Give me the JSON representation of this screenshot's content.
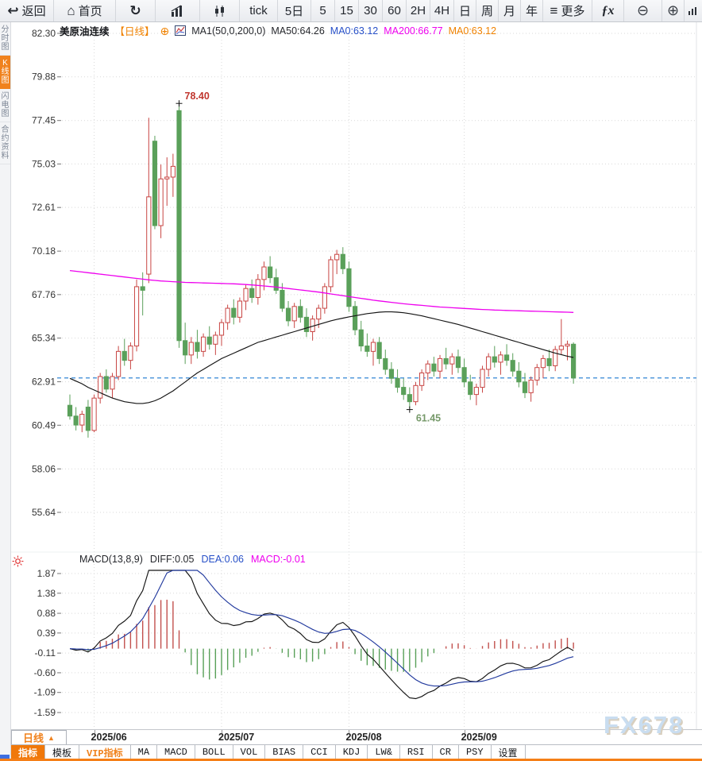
{
  "icons": {
    "back": "↩",
    "home": "⌂",
    "refresh": "↻",
    "more_glyph": "≡",
    "fx": "ƒx",
    "zoom_out": "⊖",
    "zoom_in": "⊕",
    "add": "⊕",
    "period_arrow": "▲"
  },
  "toolbar": {
    "back": "返回",
    "home": "首页",
    "tick_label": "tick",
    "d5": "5日",
    "p5": "5",
    "p15": "15",
    "p30": "30",
    "p60": "60",
    "p2h": "2H",
    "p4h": "4H",
    "pday": "日",
    "pweek": "周",
    "pmonth": "月",
    "pyear": "年",
    "more": "更多"
  },
  "sidebar": {
    "items": [
      {
        "label": "分时图",
        "active": false
      },
      {
        "label": "K线图",
        "active": true
      },
      {
        "label": "闪电图",
        "active": false
      },
      {
        "label": "合约资料",
        "active": false
      }
    ]
  },
  "header": {
    "symbol": "美原油连续",
    "period": "【日线】",
    "ma_group": "MA1(50,0,200,0)",
    "ma50": "MA50:64.26",
    "ma0_blue": "MA0:63.12",
    "ma200": "MA200:66.77",
    "ma0_orange": "MA0:63.12"
  },
  "macd_header": {
    "title": "MACD(13,8,9)",
    "diff": "DIFF:0.05",
    "dea": "DEA:0.06",
    "macd": "MACD:-0.01"
  },
  "bottom": {
    "period": "日线",
    "tabs": [
      "指标",
      "模板",
      "VIP指标",
      "MA",
      "MACD",
      "BOLL",
      "VOL",
      "BIAS",
      "CCI",
      "KDJ",
      "LW&",
      "RSI",
      "CR",
      "PSY",
      "设置"
    ]
  },
  "watermark": "FX678",
  "chart_data": {
    "type": "candlestick+macd",
    "title": "美原油连续 日线 (WTI crude continuous, daily)",
    "y_ticks": [
      "82.30",
      "79.88",
      "77.45",
      "75.03",
      "72.61",
      "70.18",
      "67.76",
      "65.34",
      "62.91",
      "60.49",
      "58.06",
      "55.64"
    ],
    "macd_y_ticks": [
      "1.87",
      "1.38",
      "0.88",
      "0.39",
      "-0.11",
      "-0.60",
      "-1.09",
      "-1.59"
    ],
    "x_labels": [
      "2025/06",
      "2025/07",
      "2025/08",
      "2025/09"
    ],
    "x_label_indices": [
      4,
      25,
      46,
      65
    ],
    "last_price": 63.12,
    "annotations": {
      "high": {
        "index": 18,
        "price": 78.4,
        "label": "78.40"
      },
      "low": {
        "index": 56,
        "price": 61.45,
        "label": "61.45"
      }
    },
    "candles": [
      [
        61.6,
        62.2,
        60.8,
        61.0
      ],
      [
        61.0,
        61.5,
        60.2,
        60.5
      ],
      [
        60.5,
        61.3,
        60.1,
        61.1
      ],
      [
        61.5,
        61.9,
        59.8,
        60.2
      ],
      [
        60.2,
        62.2,
        60.1,
        62.0
      ],
      [
        62.0,
        63.4,
        61.7,
        63.2
      ],
      [
        63.2,
        63.6,
        62.3,
        62.5
      ],
      [
        62.5,
        63.4,
        62.0,
        63.2
      ],
      [
        63.2,
        64.9,
        63.0,
        64.6
      ],
      [
        64.6,
        65.3,
        63.8,
        64.1
      ],
      [
        64.1,
        65.1,
        63.6,
        64.9
      ],
      [
        64.9,
        68.6,
        64.6,
        68.2
      ],
      [
        68.2,
        69.0,
        66.6,
        68.0
      ],
      [
        68.9,
        77.6,
        68.4,
        73.2
      ],
      [
        76.3,
        76.6,
        71.4,
        71.6
      ],
      [
        71.6,
        75.0,
        70.9,
        74.2
      ],
      [
        74.2,
        75.4,
        72.7,
        74.3
      ],
      [
        74.3,
        75.6,
        73.2,
        74.9
      ],
      [
        78.0,
        78.4,
        64.8,
        65.2
      ],
      [
        65.2,
        66.2,
        63.9,
        64.4
      ],
      [
        64.4,
        65.4,
        63.9,
        65.1
      ],
      [
        65.1,
        65.8,
        64.2,
        64.6
      ],
      [
        64.6,
        65.6,
        64.3,
        65.4
      ],
      [
        65.4,
        66.0,
        64.7,
        65.0
      ],
      [
        65.0,
        65.7,
        64.4,
        65.5
      ],
      [
        65.5,
        66.4,
        64.9,
        66.2
      ],
      [
        66.2,
        67.2,
        65.8,
        67.0
      ],
      [
        67.0,
        67.5,
        66.1,
        66.5
      ],
      [
        66.5,
        67.6,
        66.2,
        67.4
      ],
      [
        67.4,
        68.3,
        66.9,
        68.1
      ],
      [
        68.1,
        68.6,
        67.3,
        67.6
      ],
      [
        67.6,
        68.9,
        67.2,
        68.6
      ],
      [
        68.6,
        69.6,
        68.0,
        69.3
      ],
      [
        69.3,
        69.9,
        68.4,
        68.7
      ],
      [
        68.7,
        69.2,
        67.8,
        68.0
      ],
      [
        68.0,
        68.4,
        66.8,
        67.0
      ],
      [
        67.0,
        67.4,
        66.0,
        66.3
      ],
      [
        66.3,
        67.3,
        65.9,
        67.1
      ],
      [
        67.1,
        67.5,
        66.2,
        66.5
      ],
      [
        66.5,
        67.0,
        65.4,
        65.7
      ],
      [
        65.7,
        66.6,
        65.2,
        66.4
      ],
      [
        66.4,
        67.2,
        65.9,
        67.0
      ],
      [
        67.0,
        68.4,
        66.7,
        68.2
      ],
      [
        68.2,
        69.9,
        67.9,
        69.7
      ],
      [
        69.7,
        70.25,
        68.9,
        70.0
      ],
      [
        70.0,
        70.4,
        68.9,
        69.2
      ],
      [
        69.2,
        69.6,
        66.8,
        67.1
      ],
      [
        67.1,
        67.4,
        65.5,
        65.8
      ],
      [
        65.8,
        66.3,
        64.6,
        64.9
      ],
      [
        64.9,
        65.6,
        64.3,
        64.6
      ],
      [
        64.6,
        65.3,
        63.8,
        65.1
      ],
      [
        65.1,
        65.4,
        63.9,
        64.2
      ],
      [
        64.2,
        64.7,
        63.3,
        63.6
      ],
      [
        63.6,
        64.0,
        62.8,
        63.1
      ],
      [
        63.1,
        63.6,
        62.3,
        62.6
      ],
      [
        62.6,
        63.1,
        61.9,
        62.2
      ],
      [
        62.2,
        62.6,
        61.45,
        61.8
      ],
      [
        61.8,
        62.9,
        61.6,
        62.7
      ],
      [
        62.7,
        63.6,
        62.4,
        63.4
      ],
      [
        63.4,
        64.1,
        63.0,
        63.9
      ],
      [
        63.9,
        64.3,
        63.2,
        63.5
      ],
      [
        63.5,
        64.4,
        63.1,
        64.2
      ],
      [
        64.2,
        64.8,
        63.6,
        63.9
      ],
      [
        63.9,
        64.5,
        63.3,
        64.3
      ],
      [
        64.3,
        64.7,
        63.4,
        63.7
      ],
      [
        63.7,
        64.2,
        62.6,
        62.9
      ],
      [
        62.9,
        63.3,
        61.9,
        62.2
      ],
      [
        62.2,
        62.8,
        61.6,
        62.6
      ],
      [
        62.6,
        63.8,
        62.3,
        63.6
      ],
      [
        63.6,
        64.5,
        63.2,
        64.3
      ],
      [
        64.3,
        64.9,
        63.7,
        64.0
      ],
      [
        64.0,
        64.6,
        63.3,
        64.4
      ],
      [
        64.4,
        65.0,
        63.8,
        64.1
      ],
      [
        64.1,
        64.5,
        63.2,
        63.5
      ],
      [
        63.5,
        64.0,
        62.6,
        62.9
      ],
      [
        62.9,
        63.4,
        62.0,
        62.3
      ],
      [
        62.3,
        63.2,
        61.8,
        63.0
      ],
      [
        63.0,
        63.9,
        62.7,
        63.7
      ],
      [
        63.7,
        64.4,
        63.1,
        64.2
      ],
      [
        64.2,
        64.7,
        63.5,
        63.8
      ],
      [
        63.8,
        64.9,
        63.5,
        64.7
      ],
      [
        64.7,
        66.4,
        64.4,
        64.9
      ],
      [
        64.9,
        65.2,
        64.1,
        65.0
      ],
      [
        65.0,
        65.1,
        62.8,
        63.12
      ]
    ],
    "ma50": [
      63.1,
      62.95,
      62.8,
      62.6,
      62.45,
      62.3,
      62.15,
      62.0,
      61.9,
      61.8,
      61.75,
      61.7,
      61.7,
      61.75,
      61.85,
      62.0,
      62.2,
      62.4,
      62.65,
      62.9,
      63.15,
      63.4,
      63.6,
      63.8,
      64.0,
      64.2,
      64.35,
      64.5,
      64.65,
      64.8,
      64.95,
      65.1,
      65.2,
      65.3,
      65.4,
      65.5,
      65.6,
      65.7,
      65.8,
      65.9,
      66.0,
      66.1,
      66.2,
      66.3,
      66.38,
      66.45,
      66.52,
      66.58,
      66.64,
      66.7,
      66.74,
      66.78,
      66.8,
      66.8,
      66.78,
      66.75,
      66.7,
      66.64,
      66.58,
      66.5,
      66.42,
      66.34,
      66.26,
      66.18,
      66.1,
      66.0,
      65.9,
      65.8,
      65.7,
      65.6,
      65.5,
      65.4,
      65.3,
      65.2,
      65.1,
      65.0,
      64.9,
      64.8,
      64.7,
      64.6,
      64.5,
      64.42,
      64.33,
      64.26
    ],
    "ma200": [
      69.1,
      69.06,
      69.02,
      68.98,
      68.94,
      68.9,
      68.86,
      68.82,
      68.78,
      68.74,
      68.7,
      68.66,
      68.62,
      68.58,
      68.55,
      68.52,
      68.5,
      68.48,
      68.46,
      68.44,
      68.43,
      68.42,
      68.41,
      68.4,
      68.39,
      68.38,
      68.37,
      68.36,
      68.34,
      68.32,
      68.3,
      68.27,
      68.24,
      68.21,
      68.18,
      68.14,
      68.1,
      68.06,
      68.02,
      67.98,
      67.94,
      67.9,
      67.85,
      67.8,
      67.75,
      67.7,
      67.65,
      67.6,
      67.55,
      67.5,
      67.45,
      67.41,
      67.37,
      67.33,
      67.29,
      67.25,
      67.22,
      67.19,
      67.16,
      67.13,
      67.1,
      67.07,
      67.05,
      67.03,
      67.01,
      66.99,
      66.97,
      66.95,
      66.93,
      66.92,
      66.9,
      66.89,
      66.88,
      66.87,
      66.86,
      66.85,
      66.84,
      66.83,
      66.82,
      66.81,
      66.8,
      66.79,
      66.78,
      66.77
    ],
    "macd_last": {
      "diff": 0.05,
      "dea": 0.06,
      "macd": -0.01
    }
  }
}
